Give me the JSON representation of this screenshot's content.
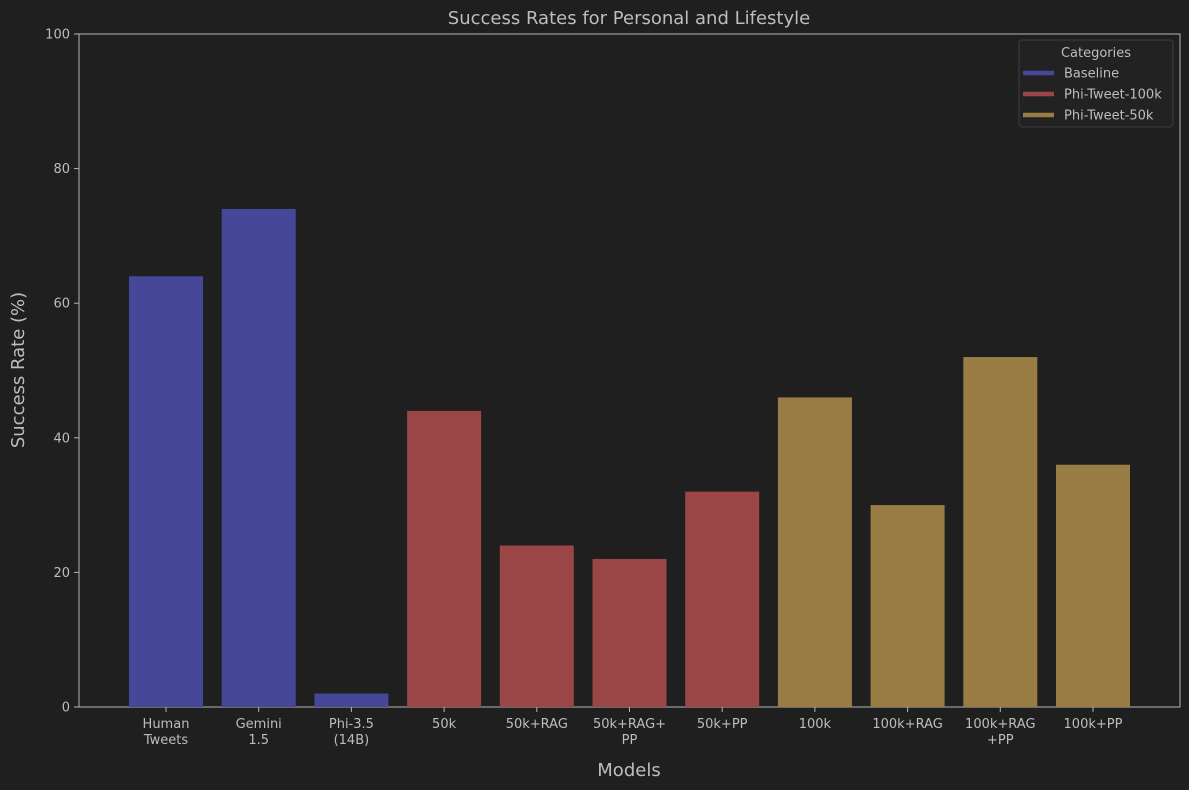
{
  "chart_data": {
    "type": "bar",
    "title": "Success Rates for Personal and Lifestyle",
    "xlabel": "Models",
    "ylabel": "Success Rate (%)",
    "ylim": [
      0,
      100
    ],
    "yticks": [
      0,
      20,
      40,
      60,
      80,
      100
    ],
    "grid": false,
    "categories": [
      [
        "Human",
        "Tweets"
      ],
      [
        "Gemini",
        "1.5"
      ],
      [
        "Phi-3.5",
        "(14B)"
      ],
      [
        "50k"
      ],
      [
        "50k+RAG"
      ],
      [
        "50k+RAG+",
        "PP"
      ],
      [
        "50k+PP"
      ],
      [
        "100k"
      ],
      [
        "100k+RAG"
      ],
      [
        "100k+RAG",
        "+PP"
      ],
      [
        "100k+PP"
      ]
    ],
    "values": [
      64,
      74,
      2,
      44,
      24,
      22,
      32,
      46,
      30,
      52,
      36
    ],
    "bar_group": [
      0,
      0,
      0,
      1,
      1,
      1,
      1,
      2,
      2,
      2,
      2
    ],
    "legend": {
      "title": "Categories",
      "placement": "top-right",
      "entries": [
        {
          "name": "Baseline",
          "color": "#47479a"
        },
        {
          "name": "Phi-Tweet-100k",
          "color": "#9a4546"
        },
        {
          "name": "Phi-Tweet-50k",
          "color": "#9a7d45"
        }
      ]
    }
  }
}
